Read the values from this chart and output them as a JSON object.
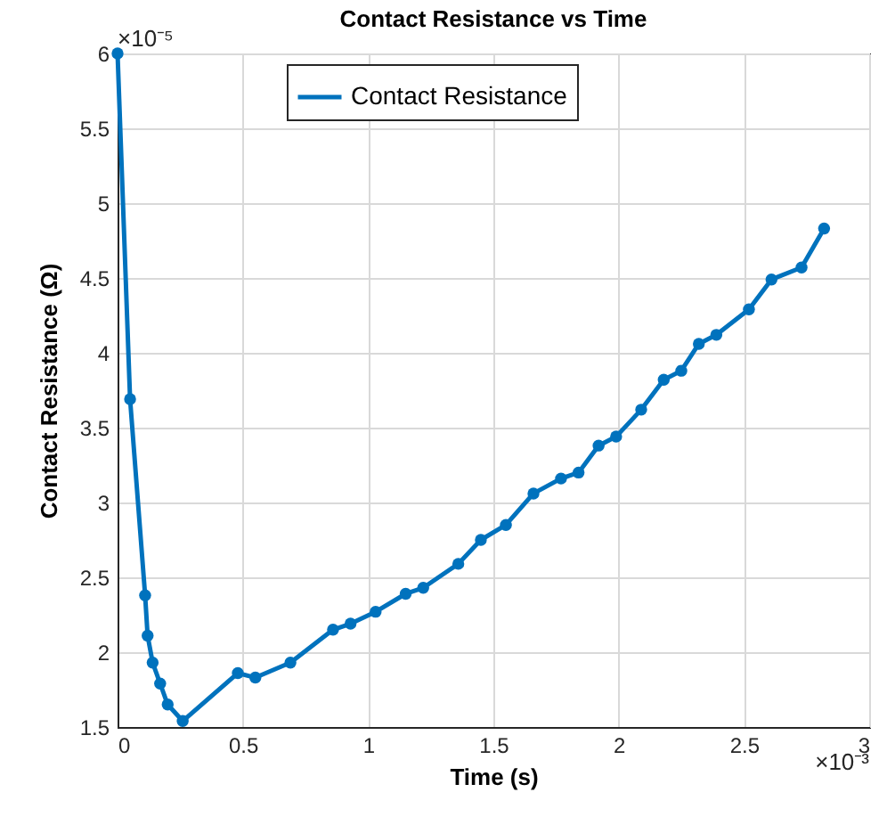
{
  "chart_data": {
    "type": "line",
    "title": "Contact Resistance vs Time",
    "xlabel": "Time (s)",
    "ylabel": "Contact Resistance (Ω)",
    "annotations": [
      "×10⁻⁵",
      "×10⁻³"
    ],
    "x": [
      0,
      0.05,
      0.11,
      0.12,
      0.14,
      0.17,
      0.2,
      0.26,
      0.48,
      0.55,
      0.69,
      0.86,
      0.93,
      1.03,
      1.15,
      1.22,
      1.36,
      1.45,
      1.55,
      1.66,
      1.77,
      1.84,
      1.92,
      1.99,
      2.09,
      2.18,
      2.25,
      2.32,
      2.39,
      2.52,
      2.61,
      2.73,
      2.82
    ],
    "series": [
      {
        "name": "Contact Resistance",
        "color": "#0072bd",
        "values": [
          6,
          3.69,
          2.38,
          2.11,
          1.93,
          1.79,
          1.65,
          1.54,
          1.86,
          1.83,
          1.93,
          2.15,
          2.19,
          2.27,
          2.39,
          2.43,
          2.59,
          2.75,
          2.85,
          3.06,
          3.16,
          3.2,
          3.38,
          3.44,
          3.62,
          3.82,
          3.88,
          4.06,
          4.12,
          4.29,
          4.49,
          4.57,
          4.83
        ]
      }
    ],
    "xlim": [
      0,
      3
    ],
    "xticks": [
      0,
      0.5,
      1,
      1.5,
      2,
      2.5,
      3
    ],
    "ylim": [
      1.5,
      6
    ],
    "yticks": [
      1.5,
      2,
      2.5,
      3,
      3.5,
      4,
      4.5,
      5,
      5.5,
      6
    ],
    "grid": true,
    "legend": "top",
    "marker": "circle",
    "line_style": "solid"
  }
}
